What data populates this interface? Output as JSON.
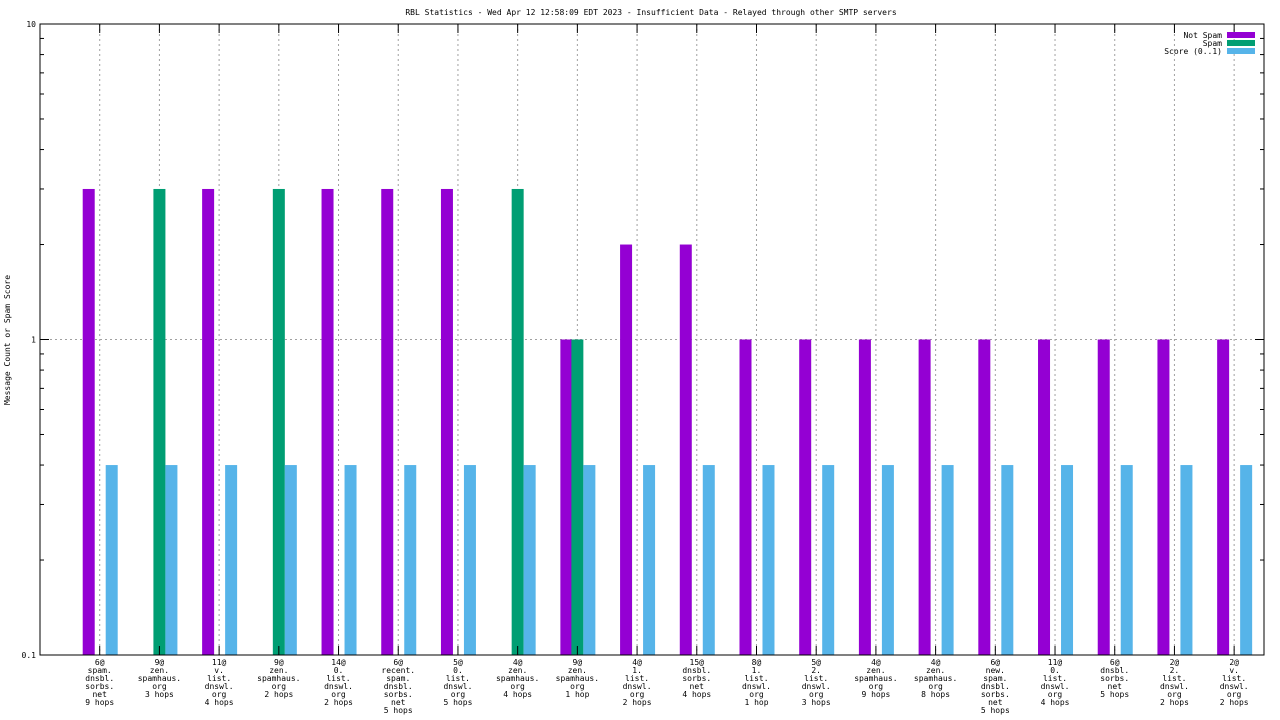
{
  "chart_data": {
    "type": "bar",
    "title": "RBL Statistics - Wed Apr 12 12:58:09 EDT 2023 - Insufficient Data - Relayed through other SMTP servers",
    "xlabel": "",
    "ylabel": "Message Count or Spam Score",
    "yscale": "log",
    "ylim": [
      0.1,
      10
    ],
    "yticks": [
      {
        "value": 10,
        "label": "10"
      },
      {
        "value": 1,
        "label": "1"
      },
      {
        "value": 0.1,
        "label": "0.1"
      }
    ],
    "grid": true,
    "legend_position": "top-right",
    "categories": [
      [
        "6@",
        "spam.",
        "dnsbl.",
        "sorbs.",
        "net",
        "9 hops"
      ],
      [
        "9@",
        "zen.",
        "spamhaus.",
        "org",
        "3 hops"
      ],
      [
        "11@",
        "v.",
        "list.",
        "dnswl.",
        "org",
        "4 hops"
      ],
      [
        "9@",
        "zen.",
        "spamhaus.",
        "org",
        "2 hops"
      ],
      [
        "14@",
        "0.",
        "list.",
        "dnswl.",
        "org",
        "2 hops"
      ],
      [
        "6@",
        "recent.",
        "spam.",
        "dnsbl.",
        "sorbs.",
        "net",
        "5 hops"
      ],
      [
        "5@",
        "0.",
        "list.",
        "dnswl.",
        "org",
        "5 hops"
      ],
      [
        "4@",
        "zen.",
        "spamhaus.",
        "org",
        "4 hops"
      ],
      [
        "9@",
        "zen.",
        "spamhaus.",
        "org",
        "1 hop"
      ],
      [
        "4@",
        "1.",
        "list.",
        "dnswl.",
        "org",
        "2 hops"
      ],
      [
        "15@",
        "dnsbl.",
        "sorbs.",
        "net",
        "4 hops"
      ],
      [
        "8@",
        "1.",
        "list.",
        "dnswl.",
        "org",
        "1 hop"
      ],
      [
        "5@",
        "2.",
        "list.",
        "dnswl.",
        "org",
        "3 hops"
      ],
      [
        "4@",
        "zen.",
        "spamhaus.",
        "org",
        "9 hops"
      ],
      [
        "4@",
        "zen.",
        "spamhaus.",
        "org",
        "8 hops"
      ],
      [
        "6@",
        "new.",
        "spam.",
        "dnsbl.",
        "sorbs.",
        "net",
        "5 hops"
      ],
      [
        "11@",
        "0.",
        "list.",
        "dnswl.",
        "org",
        "4 hops"
      ],
      [
        "6@",
        "dnsbl.",
        "sorbs.",
        "net",
        "5 hops"
      ],
      [
        "2@",
        "2.",
        "list.",
        "dnswl.",
        "org",
        "2 hops"
      ],
      [
        "2@",
        "v.",
        "list.",
        "dnswl.",
        "org",
        "2 hops"
      ]
    ],
    "series": [
      {
        "name": "Not Spam",
        "color": "#9400d3",
        "values": [
          3,
          null,
          3,
          null,
          3,
          3,
          3,
          null,
          1,
          2,
          2,
          1,
          1,
          1,
          1,
          1,
          1,
          1,
          1,
          1
        ]
      },
      {
        "name": "Spam",
        "color": "#009e73",
        "values": [
          null,
          3,
          null,
          3,
          null,
          null,
          null,
          3,
          1,
          null,
          null,
          null,
          null,
          null,
          null,
          null,
          null,
          null,
          null,
          null
        ]
      },
      {
        "name": "Score (0..1)",
        "color": "#56b4e9",
        "values": [
          0.4,
          0.4,
          0.4,
          0.4,
          0.4,
          0.4,
          0.4,
          0.4,
          0.4,
          0.4,
          0.4,
          0.4,
          0.4,
          0.4,
          0.4,
          0.4,
          0.4,
          0.4,
          0.4,
          0.4
        ]
      }
    ]
  }
}
